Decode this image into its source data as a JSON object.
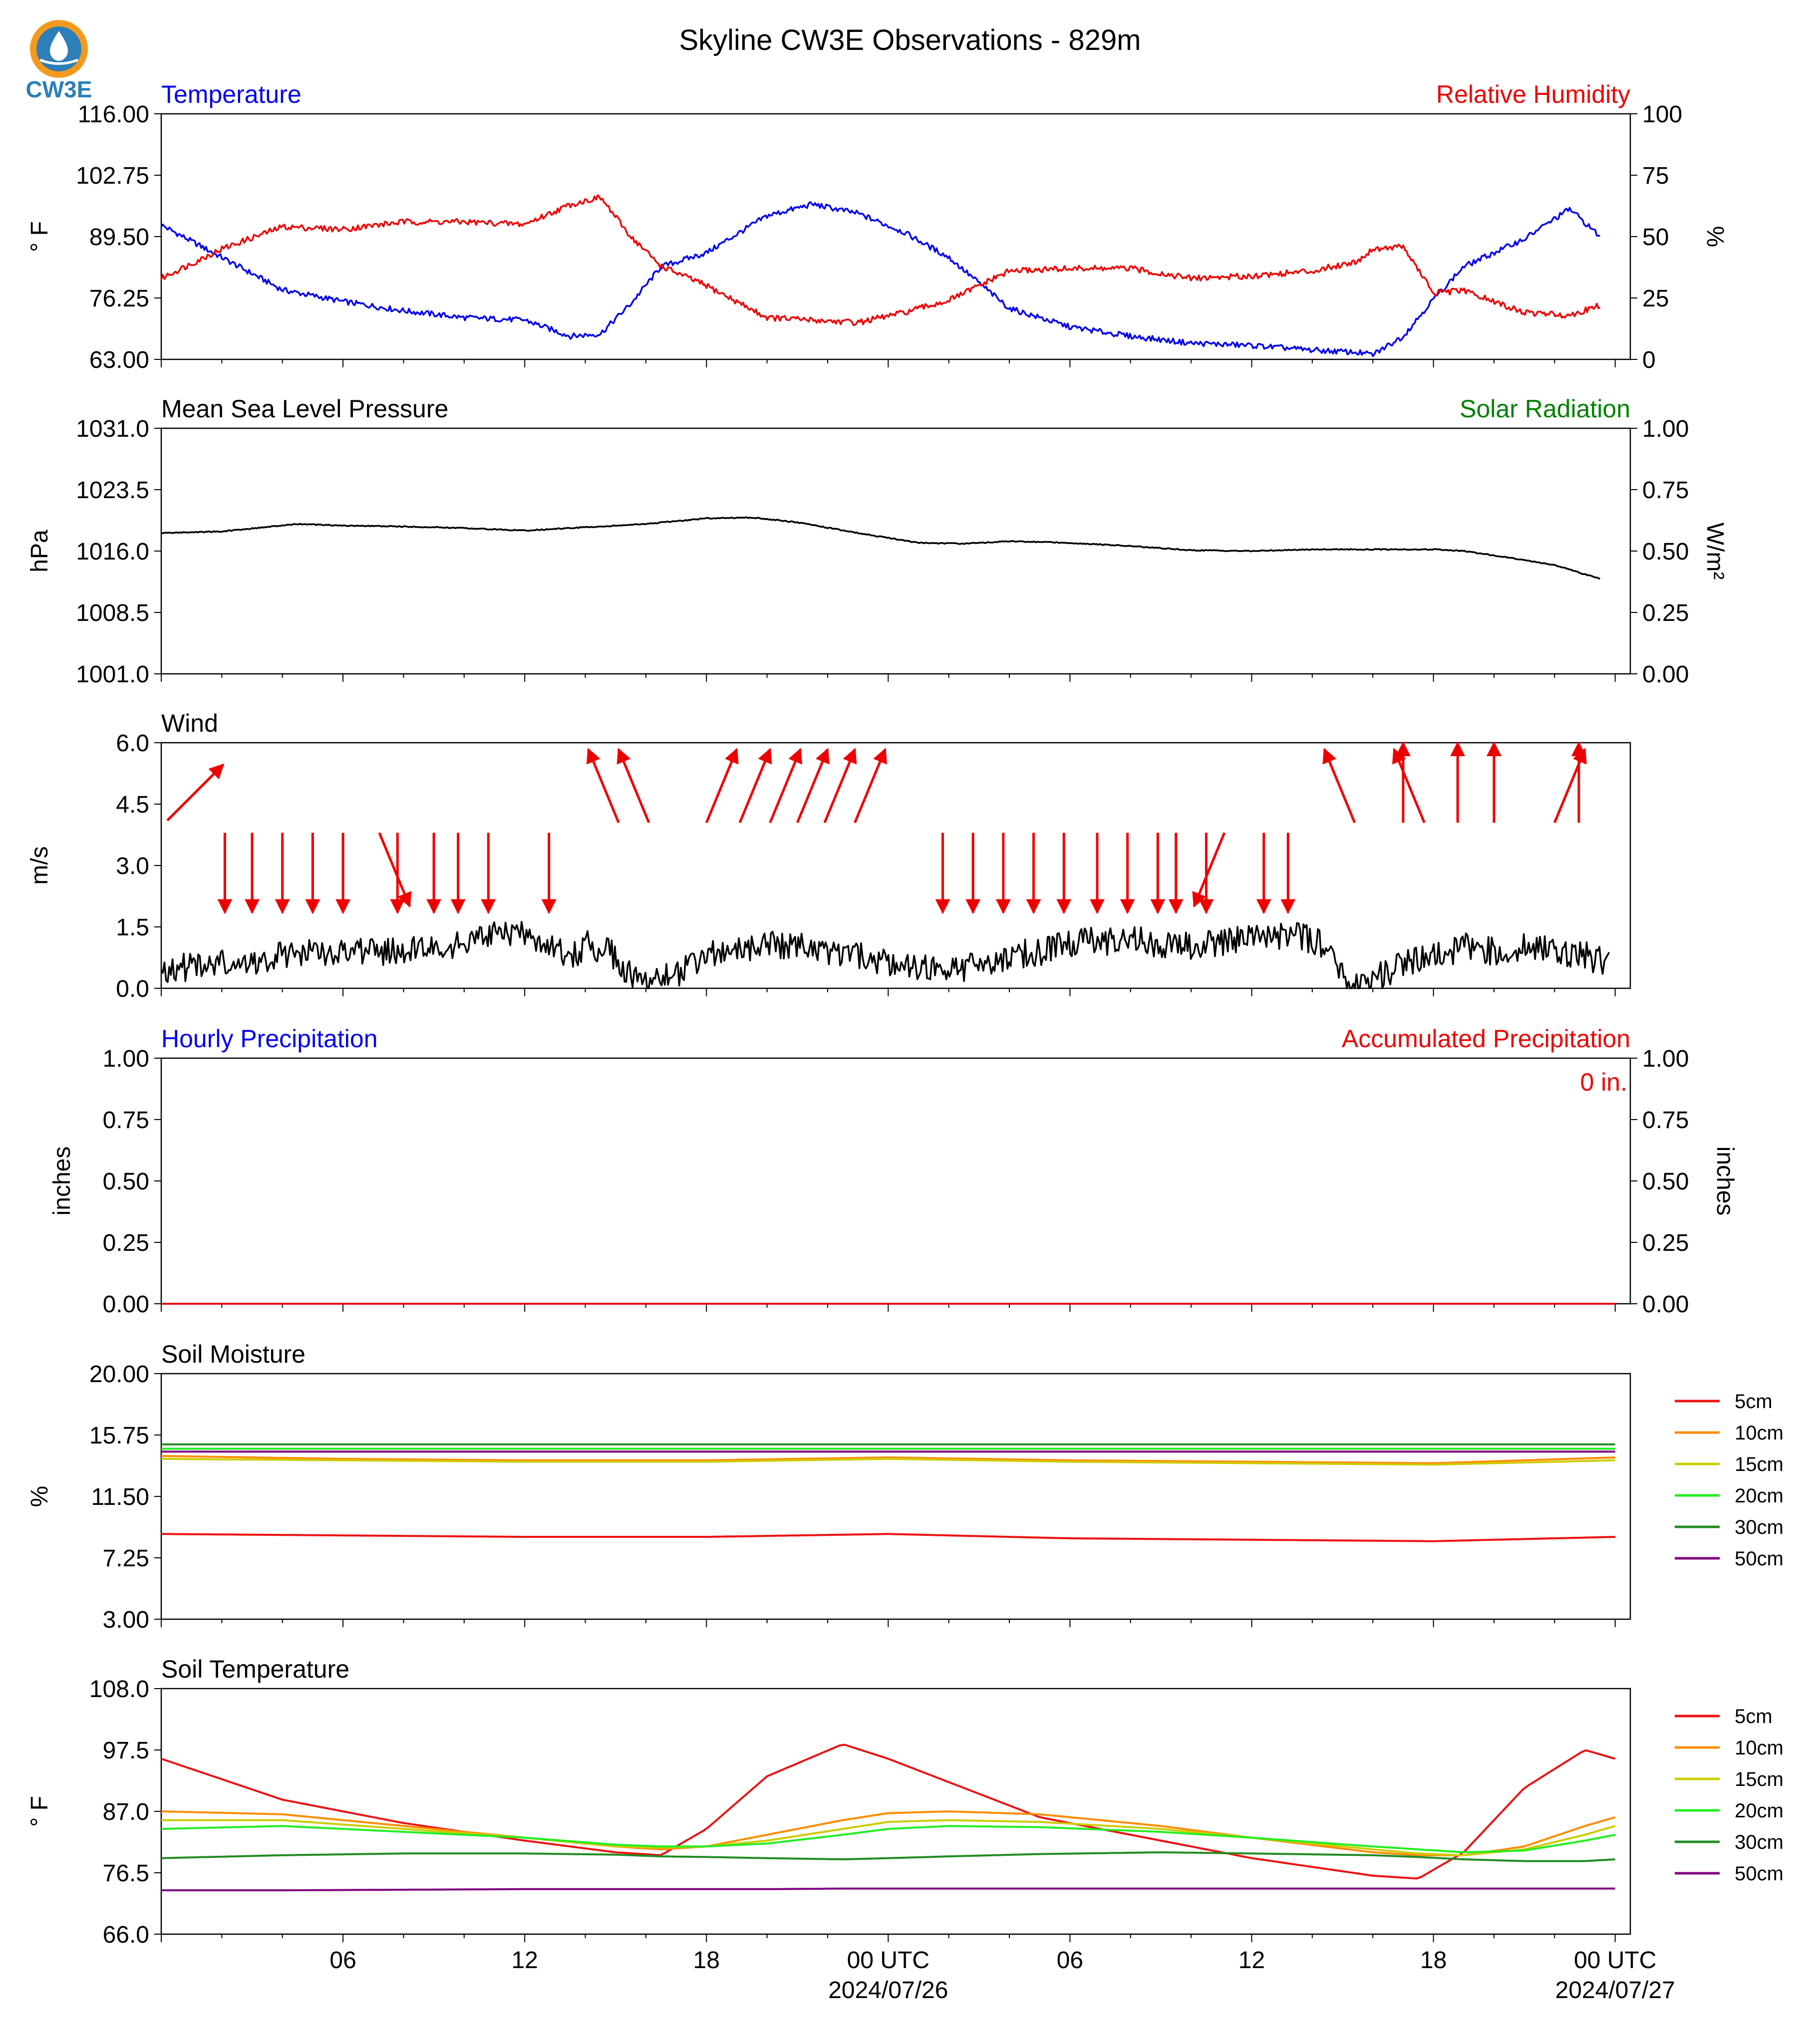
{
  "title": "Skyline CW3E Observations - 829m",
  "logo": {
    "text": "CW3E",
    "colors": [
      "#f39a1e",
      "#2c7fb8",
      "#1b5f8c"
    ]
  },
  "x_axis": {
    "ticks": [
      "06",
      "12",
      "18",
      "00 UTC",
      "06",
      "12",
      "18",
      "00 UTC"
    ],
    "dates": [
      "2024/07/26",
      "2024/07/27"
    ]
  },
  "chart_data": [
    {
      "type": "line",
      "title_left": "Temperature",
      "title_right": "Relative Humidity",
      "ylabel": "° F",
      "ylabel_right": "%",
      "yticks": [
        "116.00",
        "102.75",
        "89.50",
        "76.25",
        "63.00"
      ],
      "yticks_right": [
        "100",
        "75",
        "50",
        "25",
        "0"
      ],
      "ylim": [
        63,
        116
      ],
      "ylim_right": [
        0,
        100
      ],
      "x_hours": [
        0,
        2,
        4,
        6,
        8,
        10,
        12,
        13.5,
        14.5,
        15.5,
        16.5,
        18,
        20,
        21.5,
        23,
        24.5,
        26,
        28,
        30,
        32,
        34,
        36,
        38,
        39.5,
        40,
        41,
        42,
        43,
        45,
        46.5,
        47.5
      ],
      "series": [
        {
          "name": "Temperature",
          "color": "#0000ee",
          "axis": "left",
          "values": [
            92,
            85,
            78,
            75.5,
            73.5,
            72,
            71.5,
            68,
            68.5,
            75,
            83,
            86,
            94,
            96.5,
            94.5,
            90.5,
            85,
            74,
            70,
            68,
            66.5,
            66,
            65,
            64.5,
            64,
            68,
            76,
            83,
            89,
            95.5,
            89.5
          ]
        },
        {
          "name": "Relative Humidity",
          "color": "#ee0000",
          "axis": "right",
          "values": [
            33,
            45,
            54,
            53,
            56,
            56,
            55,
            63,
            66,
            50,
            38,
            30,
            17,
            16,
            15,
            19,
            24,
            36,
            37,
            37,
            33,
            34,
            36,
            40,
            45,
            46,
            27,
            28,
            19,
            18,
            22
          ]
        }
      ]
    },
    {
      "type": "line",
      "title_left": "Mean Sea Level Pressure",
      "title_right": "Solar Radiation",
      "ylabel": "hPa",
      "ylabel_right": "W/m²",
      "yticks": [
        "1031.0",
        "1023.5",
        "1016.0",
        "1008.5",
        "1001.0"
      ],
      "yticks_right": [
        "1.00",
        "0.75",
        "0.50",
        "0.25",
        "0.00"
      ],
      "ylim": [
        1001,
        1031
      ],
      "ylim_right": [
        0,
        1
      ],
      "x_hours": [
        0,
        2,
        4.5,
        6,
        8,
        10,
        12,
        14,
        16,
        18,
        19.5,
        21,
        23,
        25,
        26.5,
        28,
        30,
        32,
        34,
        36,
        38,
        40,
        42,
        43,
        44.5,
        46,
        47.5
      ],
      "series": [
        {
          "name": "Mean Sea Level Pressure",
          "color": "#000000",
          "axis": "left",
          "values": [
            1018.2,
            1018.4,
            1019.3,
            1019.1,
            1019,
            1018.8,
            1018.5,
            1018.9,
            1019.3,
            1020,
            1020.1,
            1019.5,
            1018.2,
            1017,
            1016.9,
            1017.2,
            1017.0,
            1016.6,
            1016.1,
            1016.0,
            1016.2,
            1016.2,
            1016.2,
            1016.0,
            1015.2,
            1014.3,
            1012.6
          ]
        }
      ]
    },
    {
      "type": "line",
      "title_left": "Wind",
      "ylabel": "m/s",
      "yticks": [
        "6.0",
        "4.5",
        "3.0",
        "1.5",
        "0.0"
      ],
      "ylim": [
        0,
        6
      ],
      "x_hours": [
        0,
        1,
        2,
        2.5,
        4,
        6,
        8,
        9,
        10.5,
        11,
        12,
        13,
        13.5,
        14,
        14.4,
        15,
        15.5,
        16,
        16.5,
        17.5,
        18,
        19,
        20,
        21.5,
        22,
        23,
        24,
        25,
        26,
        27,
        28,
        29,
        30,
        32,
        34,
        36,
        37,
        38,
        38.5,
        39,
        39.5,
        40,
        41,
        42,
        43,
        44,
        45,
        46,
        47,
        47.8
      ],
      "series": [
        {
          "name": "Wind speed",
          "color": "#000000",
          "axis": "left",
          "values": [
            0.5,
            0.5,
            0.6,
            0.5,
            0.8,
            0.9,
            0.9,
            1.0,
            1.2,
            1.3,
            1.3,
            1.0,
            0.7,
            1.1,
            1.0,
            0.8,
            0.3,
            0.1,
            0.2,
            0.5,
            0.8,
            0.9,
            1.1,
            1.0,
            0.8,
            0.8,
            0.6,
            0.5,
            0.4,
            0.6,
            0.8,
            0.9,
            1.1,
            1.2,
            1.0,
            1.2,
            1.3,
            1.2,
            1.0,
            0.3,
            0.0,
            0.2,
            0.6,
            0.8,
            1.0,
            0.9,
            1.0,
            0.9,
            0.8,
            0.6
          ]
        }
      ],
      "arrows": [
        {
          "hour": 0.2,
          "speed": 4.1,
          "dir": "NE"
        },
        {
          "hour": 2.1,
          "speed": 3.8,
          "dir": "S"
        },
        {
          "hour": 3.0,
          "speed": 3.8,
          "dir": "S"
        },
        {
          "hour": 4.0,
          "speed": 3.8,
          "dir": "S"
        },
        {
          "hour": 5.0,
          "speed": 3.8,
          "dir": "S"
        },
        {
          "hour": 6.0,
          "speed": 3.8,
          "dir": "S"
        },
        {
          "hour": 7.2,
          "speed": 3.8,
          "dir": "SSE"
        },
        {
          "hour": 7.8,
          "speed": 3.8,
          "dir": "S"
        },
        {
          "hour": 9.0,
          "speed": 3.8,
          "dir": "S"
        },
        {
          "hour": 9.8,
          "speed": 3.8,
          "dir": "S"
        },
        {
          "hour": 10.8,
          "speed": 3.8,
          "dir": "S"
        },
        {
          "hour": 12.8,
          "speed": 3.8,
          "dir": "S"
        },
        {
          "hour": 15.1,
          "speed": 5.9,
          "dir": "NNW"
        },
        {
          "hour": 16.1,
          "speed": 5.9,
          "dir": "NNW"
        },
        {
          "hour": 18.0,
          "speed": 5.9,
          "dir": "NNE"
        },
        {
          "hour": 19.1,
          "speed": 5.9,
          "dir": "NNE"
        },
        {
          "hour": 20.1,
          "speed": 5.9,
          "dir": "NNE"
        },
        {
          "hour": 21.0,
          "speed": 5.9,
          "dir": "NNE"
        },
        {
          "hour": 21.9,
          "speed": 5.9,
          "dir": "NNE"
        },
        {
          "hour": 22.9,
          "speed": 5.9,
          "dir": "NNE"
        },
        {
          "hour": 25.8,
          "speed": 3.8,
          "dir": "S"
        },
        {
          "hour": 26.8,
          "speed": 3.8,
          "dir": "S"
        },
        {
          "hour": 27.8,
          "speed": 3.8,
          "dir": "S"
        },
        {
          "hour": 28.8,
          "speed": 3.8,
          "dir": "S"
        },
        {
          "hour": 29.8,
          "speed": 3.8,
          "dir": "S"
        },
        {
          "hour": 30.9,
          "speed": 3.8,
          "dir": "S"
        },
        {
          "hour": 31.9,
          "speed": 3.8,
          "dir": "S"
        },
        {
          "hour": 32.9,
          "speed": 3.8,
          "dir": "S"
        },
        {
          "hour": 33.5,
          "speed": 3.8,
          "dir": "S"
        },
        {
          "hour": 34.5,
          "speed": 3.8,
          "dir": "S"
        },
        {
          "hour": 35.1,
          "speed": 3.8,
          "dir": "SSW"
        },
        {
          "hour": 36.4,
          "speed": 3.8,
          "dir": "S"
        },
        {
          "hour": 37.2,
          "speed": 3.8,
          "dir": "S"
        },
        {
          "hour": 39.4,
          "speed": 5.9,
          "dir": "NNW"
        },
        {
          "hour": 41.0,
          "speed": 5.9,
          "dir": "N"
        },
        {
          "hour": 41.7,
          "speed": 5.9,
          "dir": "NNW"
        },
        {
          "hour": 42.8,
          "speed": 5.9,
          "dir": "N"
        },
        {
          "hour": 44.0,
          "speed": 5.9,
          "dir": "N"
        },
        {
          "hour": 46.0,
          "speed": 5.9,
          "dir": "NNE"
        },
        {
          "hour": 46.8,
          "speed": 5.9,
          "dir": "N"
        }
      ]
    },
    {
      "type": "line",
      "title_left": "Hourly Precipitation",
      "title_right": "Accumulated Precipitation",
      "ylabel": "inches",
      "ylabel_right": "inches",
      "yticks": [
        "1.00",
        "0.75",
        "0.50",
        "0.25",
        "0.00"
      ],
      "yticks_right": [
        "1.00",
        "0.75",
        "0.50",
        "0.25",
        "0.00"
      ],
      "ylim": [
        0,
        1
      ],
      "annotation": "0 in.",
      "x_hours": [
        0,
        48
      ],
      "series": [
        {
          "name": "Hourly Precipitation",
          "color": "#0000ee",
          "axis": "left",
          "values": [
            0,
            0
          ]
        },
        {
          "name": "Accumulated Precipitation",
          "color": "#ee0000",
          "axis": "right",
          "values": [
            0,
            0
          ]
        }
      ]
    },
    {
      "type": "line",
      "title_left": "Soil Moisture",
      "ylabel": "%",
      "yticks": [
        "20.00",
        "15.75",
        "11.50",
        "7.25",
        "3.00"
      ],
      "ylim": [
        3,
        20
      ],
      "x_hours": [
        0,
        6,
        12,
        18,
        24,
        30,
        36,
        42,
        48
      ],
      "legend": [
        "5cm",
        "10cm",
        "15cm",
        "20cm",
        "30cm",
        "50cm"
      ],
      "series": [
        {
          "name": "5cm",
          "color": "#ee1111",
          "values": [
            8.9,
            8.8,
            8.7,
            8.7,
            8.9,
            8.6,
            8.5,
            8.4,
            8.7
          ]
        },
        {
          "name": "10cm",
          "color": "#ff8c00",
          "values": [
            14.3,
            14.1,
            14.0,
            14.0,
            14.2,
            14.0,
            13.9,
            13.8,
            14.2
          ]
        },
        {
          "name": "15cm",
          "color": "#cccc00",
          "values": [
            14.1,
            14.0,
            13.9,
            13.9,
            14.1,
            13.9,
            13.8,
            13.7,
            14.0
          ]
        },
        {
          "name": "20cm",
          "color": "#22ee22",
          "values": [
            14.8,
            14.8,
            14.8,
            14.8,
            14.8,
            14.8,
            14.8,
            14.8,
            14.8
          ]
        },
        {
          "name": "30cm",
          "color": "#228b22",
          "values": [
            15.1,
            15.1,
            15.1,
            15.1,
            15.1,
            15.1,
            15.1,
            15.1,
            15.1
          ]
        },
        {
          "name": "50cm",
          "color": "#800080",
          "values": [
            14.6,
            14.6,
            14.6,
            14.6,
            14.6,
            14.6,
            14.6,
            14.6,
            14.6
          ]
        }
      ]
    },
    {
      "type": "line",
      "title_left": "Soil Temperature",
      "ylabel": "° F",
      "yticks": [
        "108.0",
        "97.5",
        "87.0",
        "76.5",
        "66.0"
      ],
      "ylim": [
        66,
        108
      ],
      "x_hours": [
        0,
        4,
        8,
        12,
        15,
        16.5,
        18,
        20,
        22.5,
        24,
        26,
        29,
        33,
        36,
        40,
        41.5,
        43,
        45,
        47,
        48
      ],
      "legend": [
        "5cm",
        "10cm",
        "15cm",
        "20cm",
        "30cm",
        "50cm"
      ],
      "series": [
        {
          "name": "5cm",
          "color": "#ee1111",
          "values": [
            96,
            89,
            85,
            82,
            80,
            79.5,
            84,
            93,
            98.5,
            96,
            92,
            86,
            82,
            79,
            76,
            75.5,
            80,
            91,
            97.5,
            96
          ]
        },
        {
          "name": "10cm",
          "color": "#ff8c00",
          "values": [
            87.0,
            86.5,
            84.5,
            82.5,
            81.0,
            80.5,
            81.0,
            83.0,
            85.5,
            86.7,
            87.0,
            86.5,
            84.5,
            82.5,
            80.0,
            79.5,
            79.5,
            81.0,
            84.5,
            86.0
          ]
        },
        {
          "name": "15cm",
          "color": "#cccc00",
          "values": [
            85.5,
            85.5,
            84.0,
            82.5,
            81.0,
            80.8,
            81.0,
            82.0,
            84.0,
            85.2,
            85.5,
            85.2,
            84.0,
            82.5,
            80.5,
            79.8,
            79.5,
            80.5,
            83.0,
            84.5
          ]
        },
        {
          "name": "20cm",
          "color": "#22ee22",
          "values": [
            84.0,
            84.5,
            83.5,
            82.5,
            81.3,
            81.0,
            81.0,
            81.5,
            83.0,
            84.0,
            84.5,
            84.3,
            83.5,
            82.5,
            81.0,
            80.5,
            80.0,
            80.3,
            82.0,
            83.0
          ]
        },
        {
          "name": "30cm",
          "color": "#228b22",
          "values": [
            79.0,
            79.5,
            79.8,
            79.8,
            79.6,
            79.3,
            79.2,
            79.0,
            78.8,
            79.0,
            79.3,
            79.7,
            80.0,
            79.8,
            79.5,
            79.2,
            78.8,
            78.5,
            78.5,
            78.8
          ]
        },
        {
          "name": "50cm",
          "color": "#800080",
          "values": [
            73.5,
            73.5,
            73.6,
            73.7,
            73.7,
            73.7,
            73.7,
            73.7,
            73.8,
            73.8,
            73.8,
            73.8,
            73.8,
            73.8,
            73.8,
            73.8,
            73.8,
            73.8,
            73.8,
            73.8
          ]
        }
      ]
    }
  ]
}
